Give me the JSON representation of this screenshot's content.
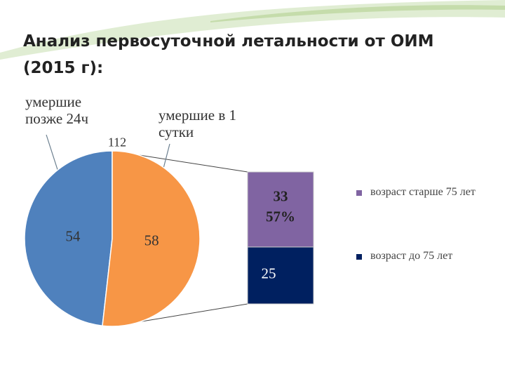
{
  "chart_data": {
    "type": "pie_of_bar",
    "title": "Анализ первосуточной летальности от ОИМ (2015 г):",
    "annotations": [
      "умершие позже 24ч",
      "умершие в 1 сутки"
    ],
    "total": 112,
    "pie": {
      "values": [
        54,
        58
      ],
      "colors": [
        "#4f81bd",
        "#f79646"
      ]
    },
    "bar": {
      "series": [
        {
          "name": "возраст старше 75 лет",
          "color": "#8064a2",
          "value": 33,
          "percent_label": "57%"
        },
        {
          "name": "возраст до 75 лет",
          "color": "#002060",
          "value": 25
        }
      ]
    }
  }
}
